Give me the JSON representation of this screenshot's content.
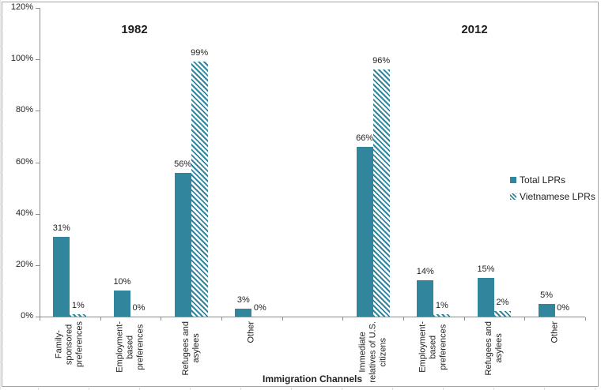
{
  "chart_data": {
    "type": "bar",
    "title": "",
    "xlabel": "Immigration Channels",
    "ylabel": "",
    "ylim": [
      0,
      120
    ],
    "ytick_labels": [
      "0%",
      "20%",
      "40%",
      "60%",
      "80%",
      "100%",
      "120%"
    ],
    "grid": false,
    "legend_position": "right",
    "group_headers": [
      "1982",
      "2012"
    ],
    "series": [
      {
        "name": "Total LPRs",
        "style": "solid",
        "color": "#31859C"
      },
      {
        "name": "Vietnamese LPRs",
        "style": "diagonal-hatch",
        "color": "#31859C"
      }
    ],
    "groups": [
      {
        "header": "1982",
        "items": [
          {
            "category": "Family-sponsored preferences",
            "label_lines": [
              "Family-",
              "sponsored",
              "preferences"
            ],
            "total_pct": 31,
            "total_label": "31%",
            "vietnamese_pct": 1,
            "vietnamese_label": "1%"
          },
          {
            "category": "Employment-based preferences",
            "label_lines": [
              "Employment-",
              "based",
              "preferences"
            ],
            "total_pct": 10,
            "total_label": "10%",
            "vietnamese_pct": 0,
            "vietnamese_label": "0%"
          },
          {
            "category": "Refugees and asylees",
            "label_lines": [
              "Refugees and",
              "asylees"
            ],
            "total_pct": 56,
            "total_label": "56%",
            "vietnamese_pct": 99,
            "vietnamese_label": "99%"
          },
          {
            "category": "Other",
            "label_lines": [
              "Other"
            ],
            "total_pct": 3,
            "total_label": "3%",
            "vietnamese_pct": 0,
            "vietnamese_label": "0%"
          }
        ]
      },
      {
        "header": "2012",
        "items": [
          {
            "category": "Immediate relatives of U.S. citizens",
            "label_lines": [
              "Immediate",
              "relatives of U.S.",
              "citizens"
            ],
            "total_pct": 66,
            "total_label": "66%",
            "vietnamese_pct": 96,
            "vietnamese_label": "96%"
          },
          {
            "category": "Employment-based preferences",
            "label_lines": [
              "Employment-",
              "based",
              "preferences"
            ],
            "total_pct": 14,
            "total_label": "14%",
            "vietnamese_pct": 1,
            "vietnamese_label": "1%"
          },
          {
            "category": "Refugees and asylees",
            "label_lines": [
              "Refugees and",
              "asylees"
            ],
            "total_pct": 15,
            "total_label": "15%",
            "vietnamese_pct": 2,
            "vietnamese_label": "2%"
          },
          {
            "category": "Other",
            "label_lines": [
              "Other"
            ],
            "total_pct": 5,
            "total_label": "5%",
            "vietnamese_pct": 0,
            "vietnamese_label": "0%"
          }
        ]
      }
    ],
    "colors": {
      "bar": "#31859C",
      "axis": "#8C8C8C",
      "text": "#1F1F1F",
      "chart_border": "#A6A6A6",
      "spreadsheet_gridline": "#DCDCDC"
    }
  }
}
